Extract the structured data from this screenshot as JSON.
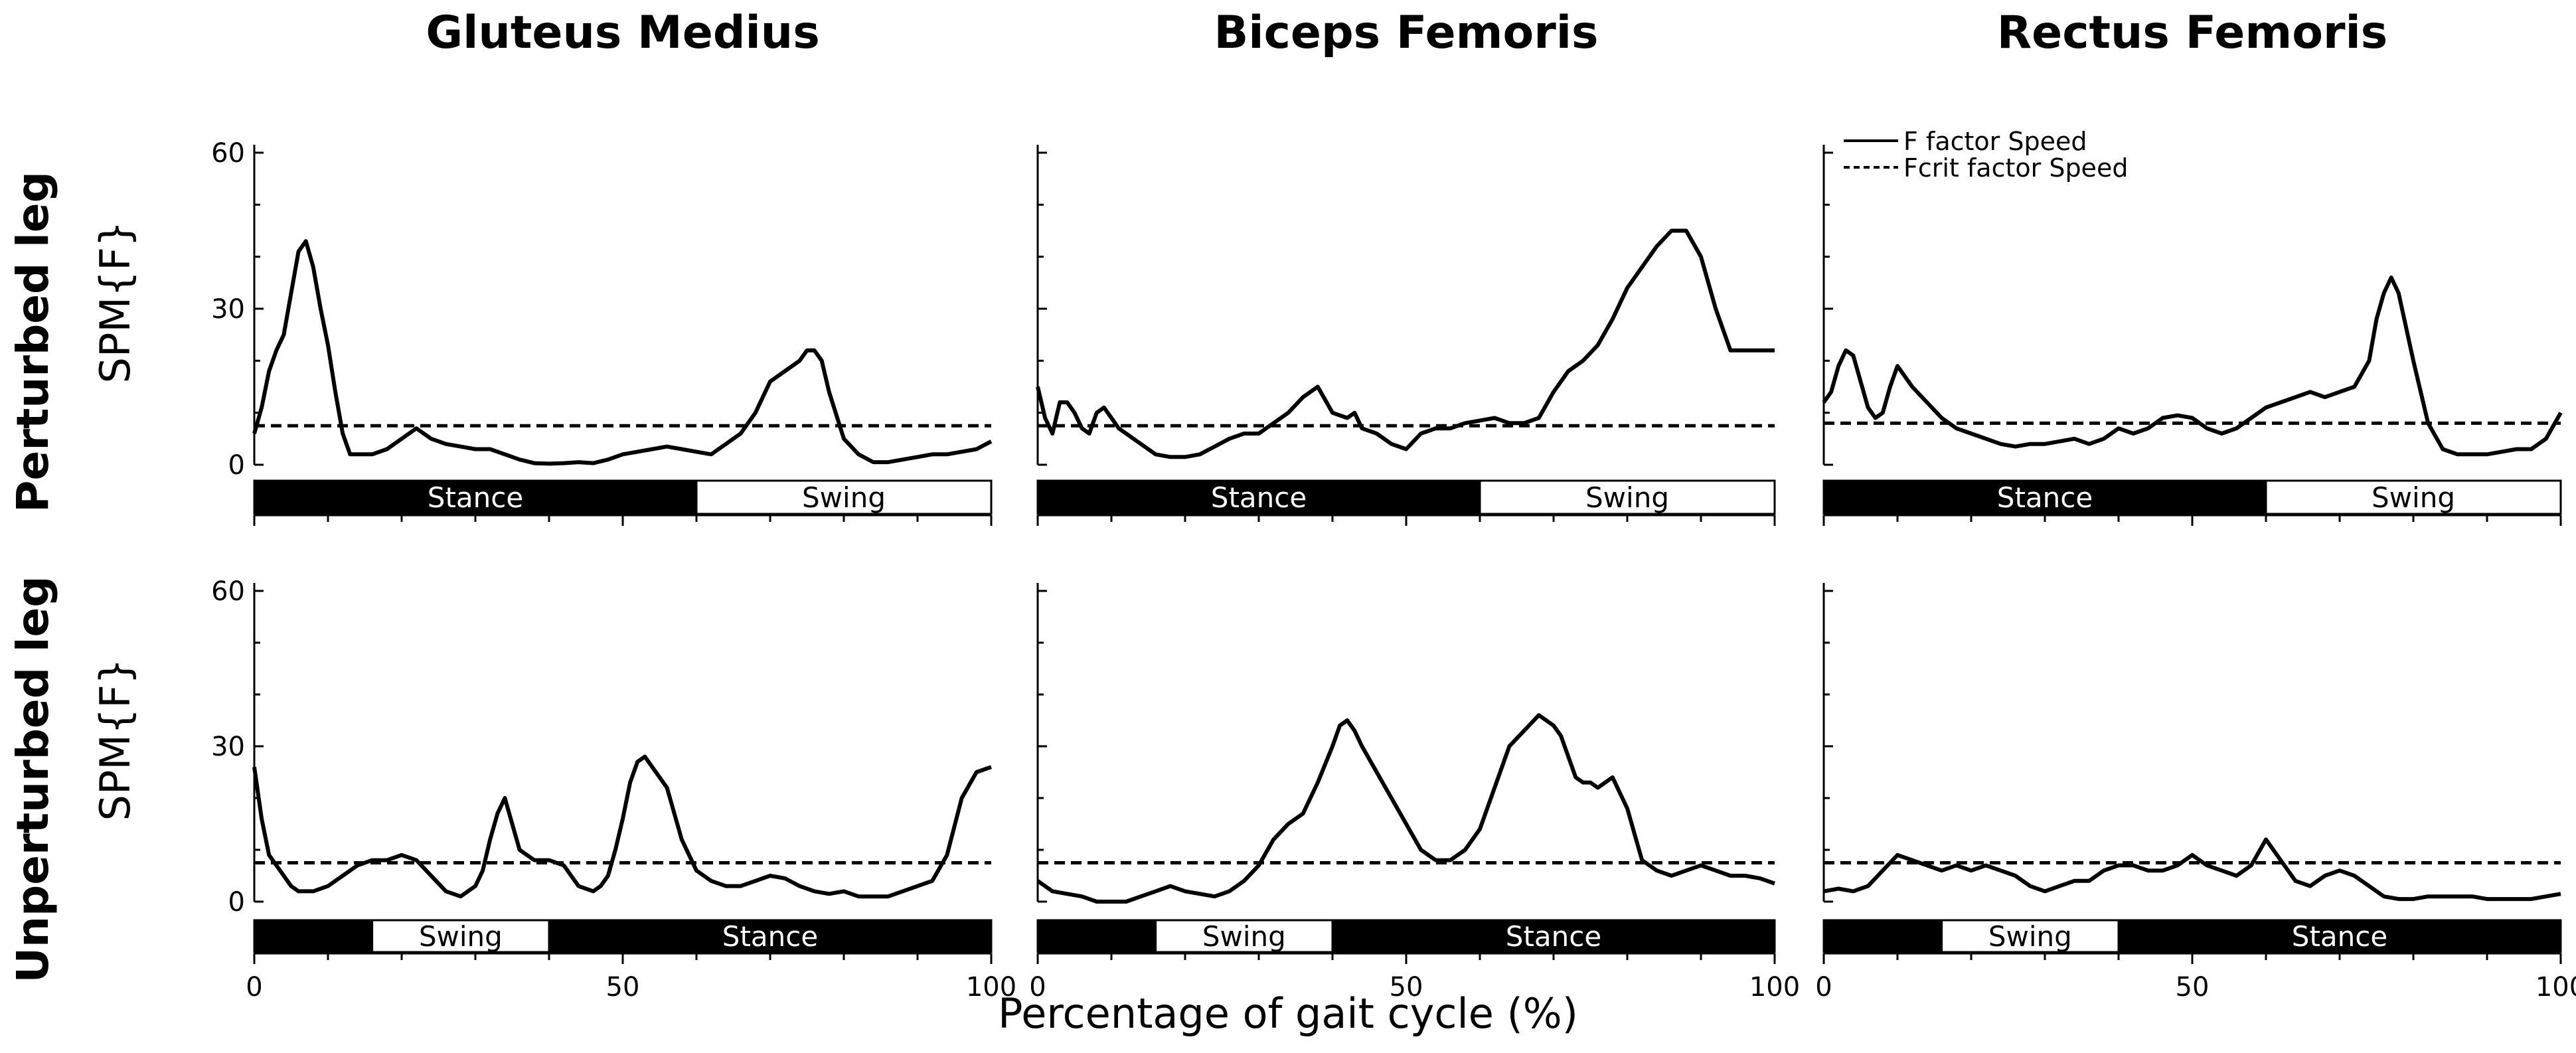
{
  "chart_data": {
    "type": "line",
    "column_titles": [
      "Gluteus Medius",
      "Biceps Femoris",
      "Rectus Femoris"
    ],
    "row_titles": [
      "Perturbed leg",
      "Unperturbed leg"
    ],
    "ylabel": "SPM{F}",
    "xlabel": "Percentage of gait cycle (%)",
    "xlim": [
      0,
      100
    ],
    "ylim": [
      0,
      60
    ],
    "yticks": [
      "0",
      "30",
      "60"
    ],
    "xticks": [
      "0",
      "50",
      "100"
    ],
    "legend": {
      "placement": "top-left of Rectus Femoris perturbed panel",
      "entries": [
        "F factor Speed",
        "Fcrit factor Speed"
      ]
    },
    "phase_bars": [
      [
        {
          "label": "Stance",
          "from": 0,
          "to": 60,
          "fill": "#000000",
          "text": "#ffffff"
        },
        {
          "label": "Swing",
          "from": 60,
          "to": 100,
          "fill": "#ffffff",
          "text": "#000000"
        }
      ],
      [
        {
          "label": "",
          "from": 0,
          "to": 16,
          "fill": "#000000",
          "text": "#ffffff"
        },
        {
          "label": "Swing",
          "from": 16,
          "to": 40,
          "fill": "#ffffff",
          "text": "#000000"
        },
        {
          "label": "Stance",
          "from": 40,
          "to": 100,
          "fill": "#000000",
          "text": "#ffffff"
        }
      ]
    ],
    "panels": [
      {
        "row": 0,
        "col": 0,
        "muscle": "Gluteus Medius",
        "leg": "Perturbed leg",
        "fcrit": 7.5,
        "x": [
          0,
          1,
          2,
          3,
          4,
          5,
          6,
          7,
          8,
          9,
          10,
          11,
          12,
          13,
          14,
          16,
          18,
          20,
          22,
          24,
          26,
          28,
          30,
          32,
          34,
          36,
          38,
          40,
          42,
          44,
          46,
          48,
          50,
          52,
          54,
          56,
          58,
          60,
          62,
          64,
          66,
          68,
          70,
          72,
          74,
          75,
          76,
          77,
          78,
          80,
          82,
          84,
          86,
          88,
          90,
          92,
          94,
          96,
          98,
          100
        ],
        "y": [
          6,
          11,
          18,
          22,
          25,
          33,
          41,
          43,
          38,
          30,
          23,
          14,
          6,
          2,
          2,
          2,
          3,
          5,
          7,
          5,
          4,
          3.5,
          3,
          3,
          2,
          1,
          0.3,
          0.2,
          0.3,
          0.5,
          0.3,
          1,
          2,
          2.5,
          3,
          3.5,
          3,
          2.5,
          2,
          4,
          6,
          10,
          16,
          18,
          20,
          22,
          22,
          20,
          14,
          5,
          2,
          0.5,
          0.5,
          1,
          1.5,
          2,
          2,
          2.5,
          3,
          4.5
        ]
      },
      {
        "row": 0,
        "col": 1,
        "muscle": "Biceps Femoris",
        "leg": "Perturbed leg",
        "fcrit": 7.5,
        "x": [
          0,
          1,
          2,
          3,
          4,
          5,
          6,
          7,
          8,
          9,
          10,
          11,
          12,
          14,
          16,
          18,
          20,
          22,
          24,
          26,
          28,
          30,
          32,
          34,
          36,
          38,
          40,
          42,
          43,
          44,
          46,
          48,
          50,
          52,
          54,
          56,
          58,
          60,
          62,
          64,
          66,
          68,
          70,
          72,
          74,
          76,
          78,
          80,
          82,
          84,
          86,
          88,
          90,
          92,
          94,
          95,
          96,
          97,
          98,
          99,
          100
        ],
        "y": [
          15,
          9,
          6,
          12,
          12,
          10,
          7,
          6,
          10,
          11,
          9,
          7,
          6,
          4,
          2,
          1.5,
          1.5,
          2,
          3.5,
          5,
          6,
          6,
          8,
          10,
          13,
          15,
          10,
          9,
          10,
          7,
          6,
          4,
          3,
          6,
          7,
          7,
          8,
          8.5,
          9,
          8,
          8,
          9,
          14,
          18,
          20,
          23,
          28,
          34,
          38,
          42,
          45,
          45,
          40,
          30,
          22,
          22,
          22,
          22,
          22,
          22,
          22
        ]
      },
      {
        "row": 0,
        "col": 2,
        "muscle": "Rectus Femoris",
        "leg": "Perturbed leg",
        "fcrit": 8,
        "x": [
          0,
          1,
          2,
          3,
          4,
          5,
          6,
          7,
          8,
          9,
          10,
          12,
          14,
          16,
          18,
          20,
          22,
          24,
          26,
          28,
          30,
          32,
          34,
          36,
          38,
          40,
          42,
          44,
          46,
          48,
          50,
          52,
          54,
          56,
          58,
          60,
          62,
          64,
          66,
          68,
          70,
          72,
          74,
          75,
          76,
          77,
          78,
          80,
          82,
          84,
          86,
          88,
          90,
          92,
          94,
          96,
          98,
          100
        ],
        "y": [
          12,
          14,
          19,
          22,
          21,
          16,
          11,
          9,
          10,
          15,
          19,
          15,
          12,
          9,
          7,
          6,
          5,
          4,
          3.5,
          4,
          4,
          4.5,
          5,
          4,
          5,
          7,
          6,
          7,
          9,
          9.5,
          9,
          7,
          6,
          7,
          9,
          11,
          12,
          13,
          14,
          13,
          14,
          15,
          20,
          28,
          33,
          36,
          33,
          20,
          8,
          3,
          2,
          2,
          2,
          2.5,
          3,
          3,
          5,
          10
        ]
      },
      {
        "row": 1,
        "col": 0,
        "muscle": "Gluteus Medius",
        "leg": "Unperturbed leg",
        "fcrit": 7.5,
        "x": [
          0,
          1,
          2,
          3,
          4,
          5,
          6,
          8,
          10,
          12,
          14,
          16,
          18,
          20,
          22,
          24,
          26,
          28,
          30,
          31,
          32,
          33,
          34,
          35,
          36,
          38,
          40,
          42,
          44,
          46,
          47,
          48,
          49,
          50,
          51,
          52,
          53,
          54,
          56,
          58,
          60,
          62,
          64,
          66,
          68,
          70,
          72,
          74,
          76,
          78,
          80,
          82,
          84,
          86,
          88,
          90,
          92,
          94,
          96,
          98,
          100
        ],
        "y": [
          26,
          16,
          9,
          7,
          5,
          3,
          2,
          2,
          3,
          5,
          7,
          8,
          8,
          9,
          8,
          5,
          2,
          1,
          3,
          6,
          12,
          17,
          20,
          15,
          10,
          8,
          8,
          7,
          3,
          2,
          3,
          5,
          10,
          16,
          23,
          27,
          28,
          26,
          22,
          12,
          6,
          4,
          3,
          3,
          4,
          5,
          4.5,
          3,
          2,
          1.5,
          2,
          1,
          1,
          1,
          2,
          3,
          4,
          9,
          20,
          25,
          26
        ]
      },
      {
        "row": 1,
        "col": 1,
        "muscle": "Biceps Femoris",
        "leg": "Unperturbed leg",
        "fcrit": 7.5,
        "x": [
          0,
          2,
          4,
          6,
          8,
          10,
          12,
          14,
          16,
          18,
          20,
          22,
          24,
          26,
          28,
          30,
          32,
          34,
          36,
          38,
          40,
          41,
          42,
          43,
          44,
          46,
          48,
          50,
          52,
          54,
          56,
          58,
          60,
          62,
          64,
          66,
          68,
          70,
          71,
          72,
          73,
          74,
          75,
          76,
          78,
          80,
          82,
          84,
          86,
          88,
          90,
          92,
          94,
          96,
          98,
          100
        ],
        "y": [
          4,
          2,
          1.5,
          1,
          0,
          0,
          0,
          1,
          2,
          3,
          2,
          1.5,
          1,
          2,
          4,
          7,
          12,
          15,
          17,
          23,
          30,
          34,
          35,
          33,
          30,
          25,
          20,
          15,
          10,
          8,
          8,
          10,
          14,
          22,
          30,
          33,
          36,
          34,
          32,
          28,
          24,
          23,
          23,
          22,
          24,
          18,
          8,
          6,
          5,
          6,
          7,
          6,
          5,
          5,
          4.5,
          3.5
        ]
      },
      {
        "row": 1,
        "col": 2,
        "muscle": "Rectus Femoris",
        "leg": "Unperturbed leg",
        "fcrit": 7.5,
        "x": [
          0,
          2,
          4,
          6,
          8,
          10,
          12,
          14,
          16,
          18,
          20,
          22,
          24,
          26,
          28,
          30,
          32,
          34,
          36,
          38,
          40,
          42,
          44,
          46,
          48,
          50,
          52,
          54,
          56,
          58,
          60,
          62,
          64,
          66,
          68,
          70,
          72,
          74,
          76,
          78,
          80,
          82,
          84,
          86,
          88,
          90,
          92,
          94,
          96,
          98,
          100
        ],
        "y": [
          2,
          2.5,
          2,
          3,
          6,
          9,
          8,
          7,
          6,
          7,
          6,
          7,
          6,
          5,
          3,
          2,
          3,
          4,
          4,
          6,
          7,
          7,
          6,
          6,
          7,
          9,
          7,
          6,
          5,
          7,
          12,
          8,
          4,
          3,
          5,
          6,
          5,
          3,
          1,
          0.5,
          0.5,
          1,
          1,
          1,
          1,
          0.5,
          0.5,
          0.5,
          0.5,
          1,
          1.5
        ]
      }
    ]
  }
}
